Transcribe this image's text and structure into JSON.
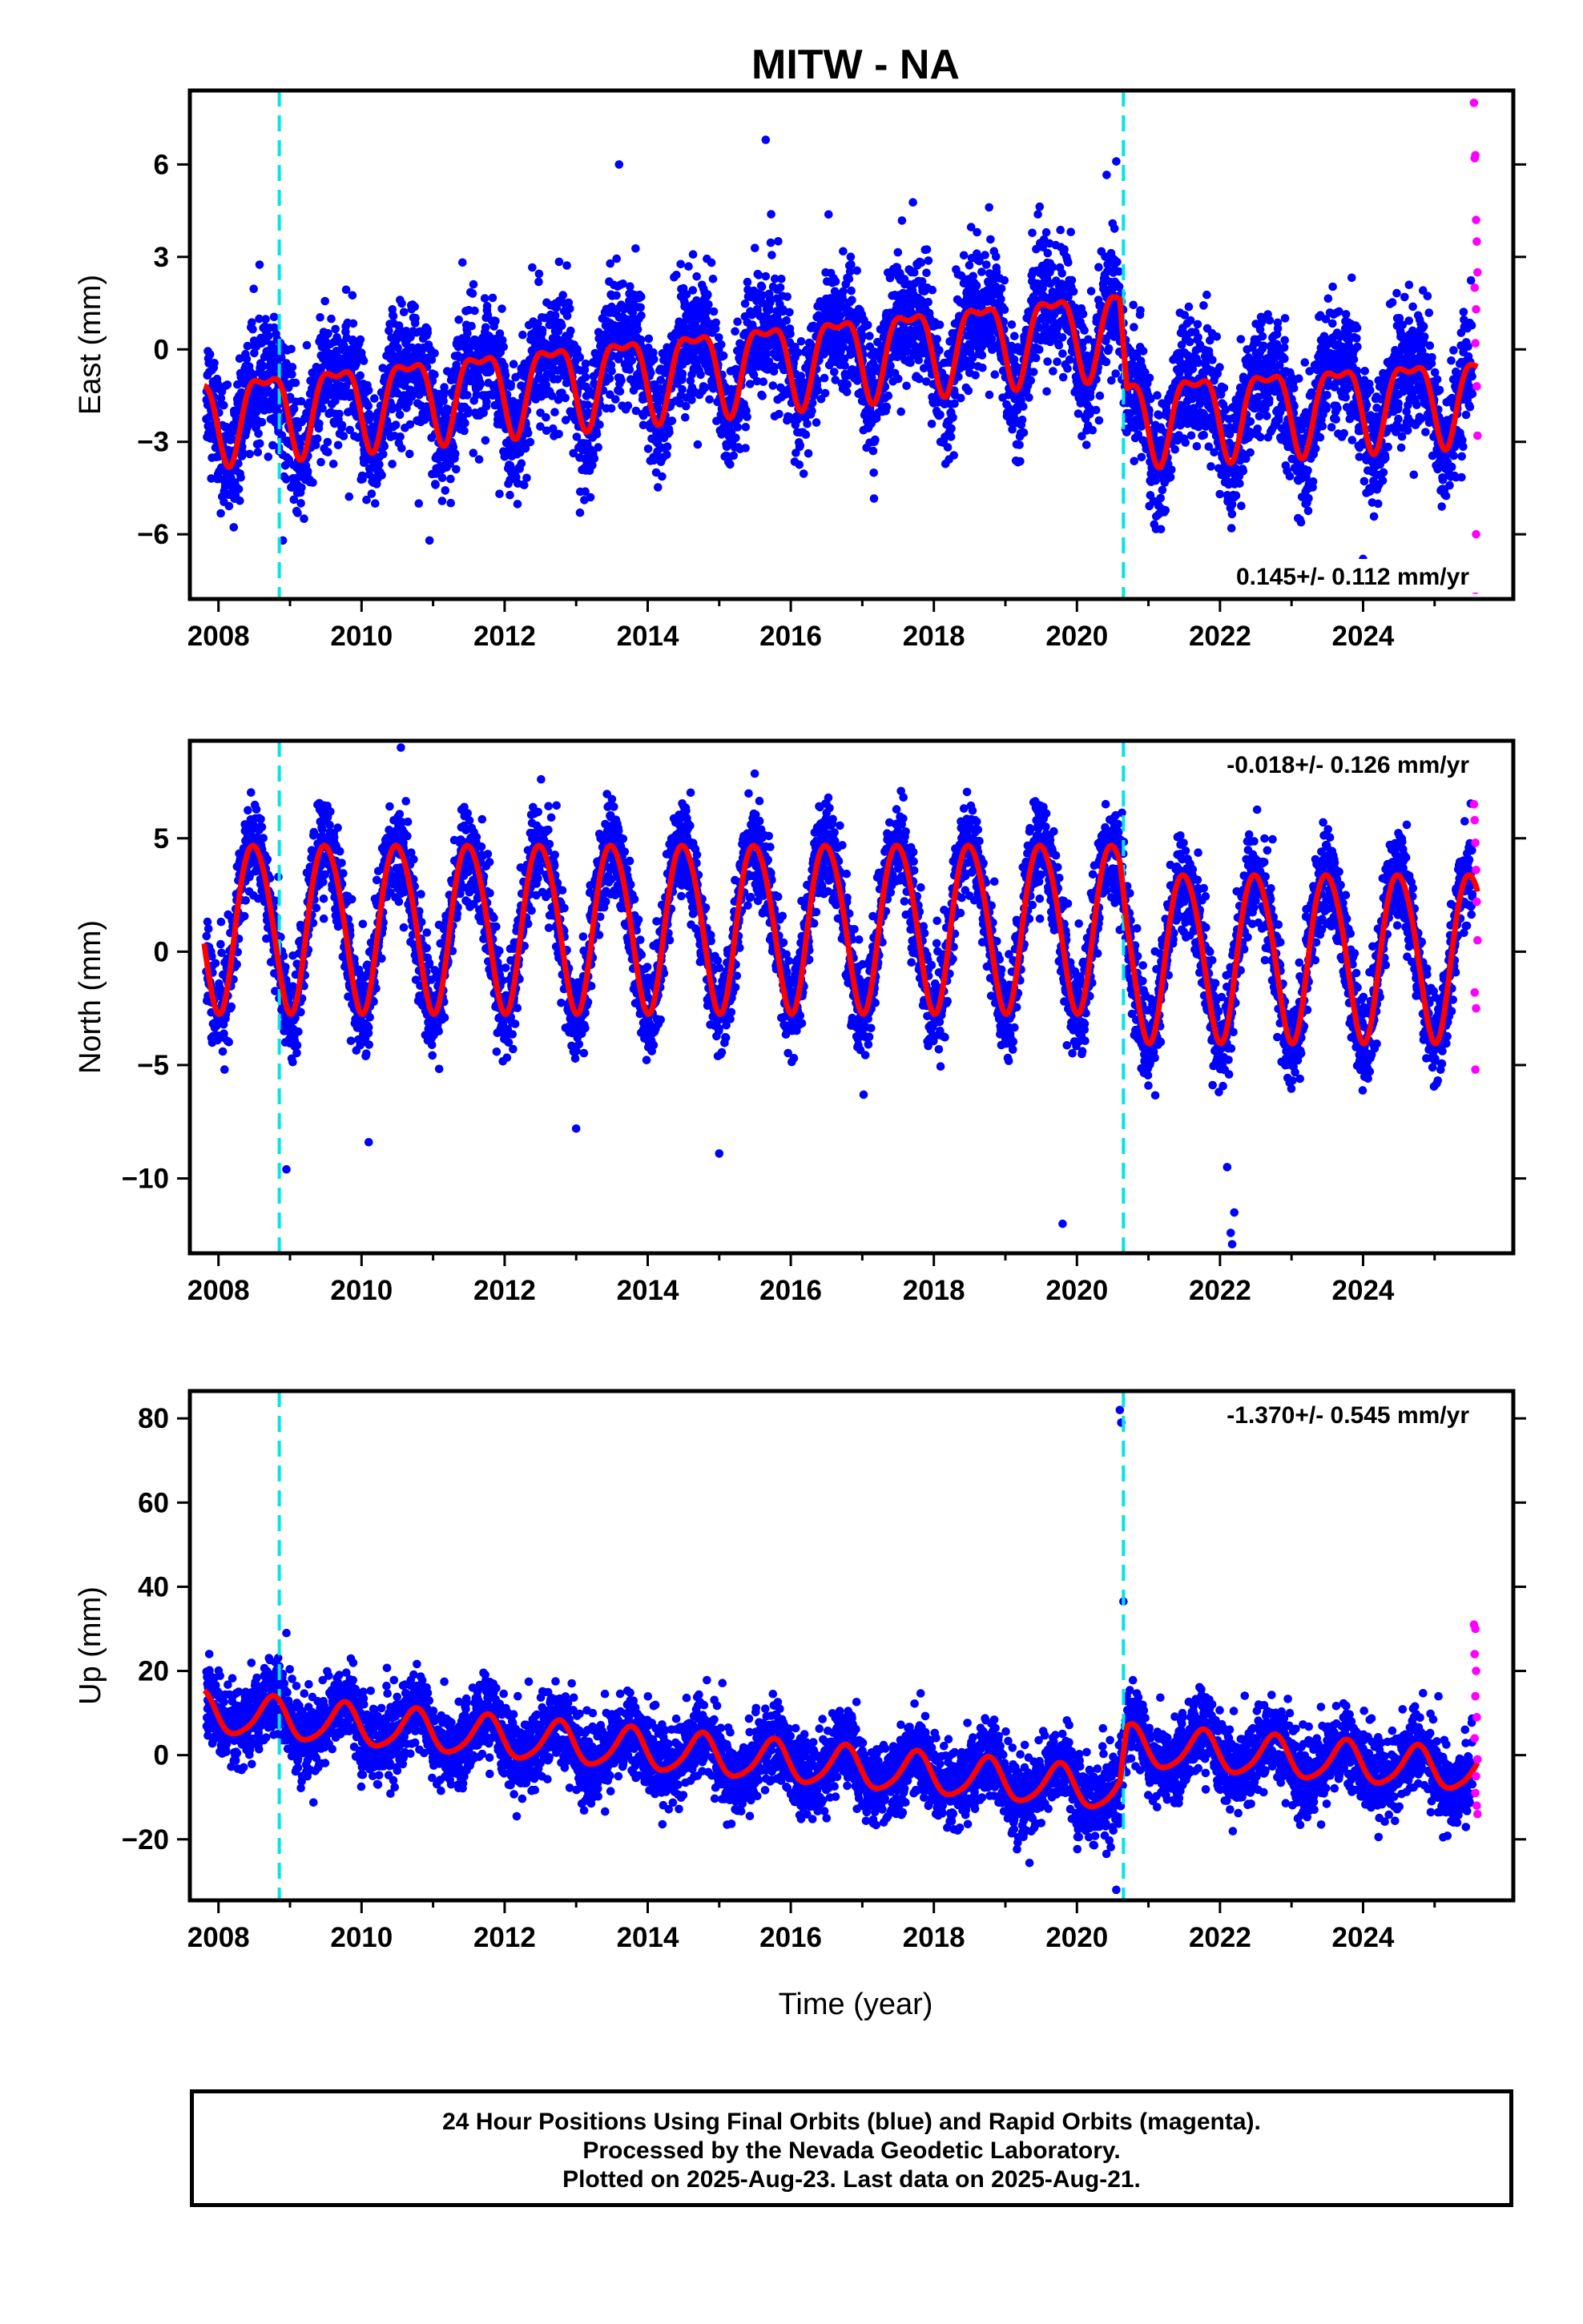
{
  "chart_data": {
    "type": "scatter",
    "title": "MITW - NA",
    "xlabel": "Time (year)",
    "x_ticks": [
      "2008",
      "2010",
      "2012",
      "2014",
      "2016",
      "2018",
      "2020",
      "2022",
      "2024"
    ],
    "xlim": [
      2007.6,
      2026.1
    ],
    "step_markers": [
      2008.85,
      2020.65
    ],
    "colors": {
      "final_orbits": "#0000ff",
      "rapid_orbits": "#ff00ff",
      "model_fit": "#ff0000",
      "step_marker": "#00e5e5"
    },
    "panels": [
      {
        "name": "east",
        "ylabel": "East (mm)",
        "y_ticks": [
          "6",
          "3",
          "0",
          "−3",
          "−6"
        ],
        "y_tick_values": [
          6,
          3,
          0,
          -3,
          -6
        ],
        "ylim": [
          -8.1,
          8.4
        ],
        "rate_label": "0.145+/- 0.112 mm/yr",
        "rate_position": "bottom-right",
        "model": {
          "trend": [
            [
              2007.8,
              -2.1
            ],
            [
              2020.6,
              0.8
            ],
            [
              2020.7,
              -2.1
            ],
            [
              2025.6,
              -1.4
            ]
          ],
          "annual_amp": 1.3,
          "annual_phase": 2008.65,
          "semi_annual_amp": 0.5,
          "semi_annual_phase": 2008.4
        },
        "scatter_sd": 1.0,
        "outliers": [
          [
            2013.6,
            6.0
          ],
          [
            2008.9,
            -6.2
          ],
          [
            2010.95,
            -6.2
          ],
          [
            2010.8,
            -5.0
          ],
          [
            2013.2,
            -4.8
          ],
          [
            2024.0,
            -6.8
          ],
          [
            2025.1,
            -5.1
          ],
          [
            2015.65,
            6.8
          ],
          [
            2020.55,
            6.1
          ]
        ],
        "rapid_points": [
          [
            2025.55,
            8.0
          ],
          [
            2025.56,
            6.2
          ],
          [
            2025.57,
            6.3
          ],
          [
            2025.58,
            4.2
          ],
          [
            2025.59,
            3.5
          ],
          [
            2025.6,
            2.5
          ],
          [
            2025.56,
            2.0
          ],
          [
            2025.58,
            1.3
          ],
          [
            2025.57,
            0.2
          ],
          [
            2025.59,
            -1.2
          ],
          [
            2025.6,
            -2.8
          ],
          [
            2025.58,
            -6.0
          ],
          [
            2025.57,
            -7.8
          ]
        ]
      },
      {
        "name": "north",
        "ylabel": "North (mm)",
        "y_ticks": [
          "5",
          "0",
          "−5",
          "−10"
        ],
        "y_tick_values": [
          5,
          0,
          -5,
          -10
        ],
        "ylim": [
          -13.3,
          9.3
        ],
        "rate_label": "-0.018+/- 0.126 mm/yr",
        "rate_position": "top-right",
        "model": {
          "trend": [
            [
              2007.8,
              1.2
            ],
            [
              2020.6,
              1.2
            ],
            [
              2020.7,
              -0.1
            ],
            [
              2025.6,
              -0.1
            ]
          ],
          "annual_amp": 3.7,
          "annual_phase": 2008.5,
          "semi_annual_amp": 0.3,
          "semi_annual_phase": 2008.3
        },
        "scatter_sd": 1.05,
        "outliers": [
          [
            2010.55,
            9.0
          ],
          [
            2008.95,
            -9.6
          ],
          [
            2015.0,
            -8.9
          ],
          [
            2019.8,
            -12.0
          ],
          [
            2022.15,
            -12.4
          ],
          [
            2022.17,
            -12.9
          ],
          [
            2022.2,
            -11.5
          ],
          [
            2010.1,
            -8.4
          ],
          [
            2013.0,
            -7.8
          ],
          [
            2022.1,
            -9.5
          ]
        ],
        "rapid_points": [
          [
            2025.55,
            6.5
          ],
          [
            2025.56,
            5.8
          ],
          [
            2025.57,
            4.8
          ],
          [
            2025.58,
            3.6
          ],
          [
            2025.59,
            2.2
          ],
          [
            2025.6,
            0.5
          ],
          [
            2025.56,
            -1.8
          ],
          [
            2025.58,
            -2.5
          ],
          [
            2025.57,
            -5.2
          ]
        ]
      },
      {
        "name": "up",
        "ylabel": "Up (mm)",
        "y_ticks": [
          "80",
          "60",
          "40",
          "20",
          "0",
          "−20"
        ],
        "y_tick_values": [
          80,
          60,
          40,
          20,
          0,
          -20
        ],
        "ylim": [
          -34.5,
          86.5
        ],
        "rate_label": "-1.370+/- 0.545 mm/yr",
        "rate_position": "top-right",
        "model": {
          "trend": [
            [
              2007.8,
              10.0
            ],
            [
              2020.6,
              -8.5
            ],
            [
              2020.7,
              2.0
            ],
            [
              2025.6,
              -4.0
            ]
          ],
          "annual_amp": 4.8,
          "annual_phase": 2008.75,
          "semi_annual_amp": 0.8,
          "semi_annual_phase": 2008.3
        },
        "scatter_sd": 4.6,
        "outliers": [
          [
            2020.6,
            82.0
          ],
          [
            2020.62,
            79.0
          ],
          [
            2020.65,
            36.5
          ],
          [
            2020.55,
            -32.0
          ],
          [
            2008.95,
            29.0
          ]
        ],
        "rapid_points": [
          [
            2025.55,
            31.0
          ],
          [
            2025.57,
            30.0
          ],
          [
            2025.56,
            24.0
          ],
          [
            2025.58,
            20.0
          ],
          [
            2025.57,
            14.0
          ],
          [
            2025.59,
            9.0
          ],
          [
            2025.56,
            4.0
          ],
          [
            2025.6,
            -1.0
          ],
          [
            2025.58,
            -5.0
          ],
          [
            2025.57,
            -9.0
          ],
          [
            2025.59,
            -12.0
          ],
          [
            2025.6,
            -14.0
          ]
        ]
      }
    ]
  },
  "footer": {
    "line1": "24 Hour Positions Using Final Orbits (blue) and Rapid Orbits (magenta).",
    "line2": "Processed by the Nevada Geodetic Laboratory.",
    "line3": "Plotted on 2025-Aug-23. Last data on 2025-Aug-21."
  }
}
